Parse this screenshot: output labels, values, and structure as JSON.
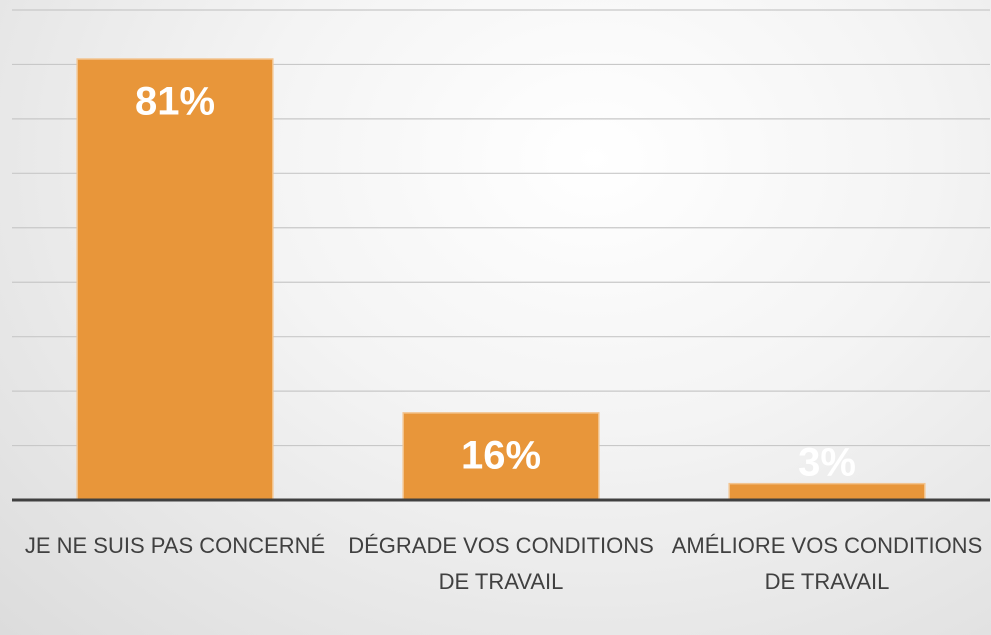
{
  "chart_data": {
    "type": "bar",
    "categories": [
      "JE NE SUIS PAS CONCERNÉ",
      "DÉGRADE VOS CONDITIONS DE TRAVAIL",
      "AMÉLIORE VOS CONDITIONS DE TRAVAIL"
    ],
    "values": [
      81,
      16,
      3
    ],
    "value_labels": [
      "81%",
      "16%",
      "3%"
    ],
    "color": "#e8963a",
    "ylim": [
      0,
      90
    ],
    "yticks": [
      0,
      10,
      20,
      30,
      40,
      50,
      60,
      70,
      80,
      90
    ],
    "grid": true
  }
}
